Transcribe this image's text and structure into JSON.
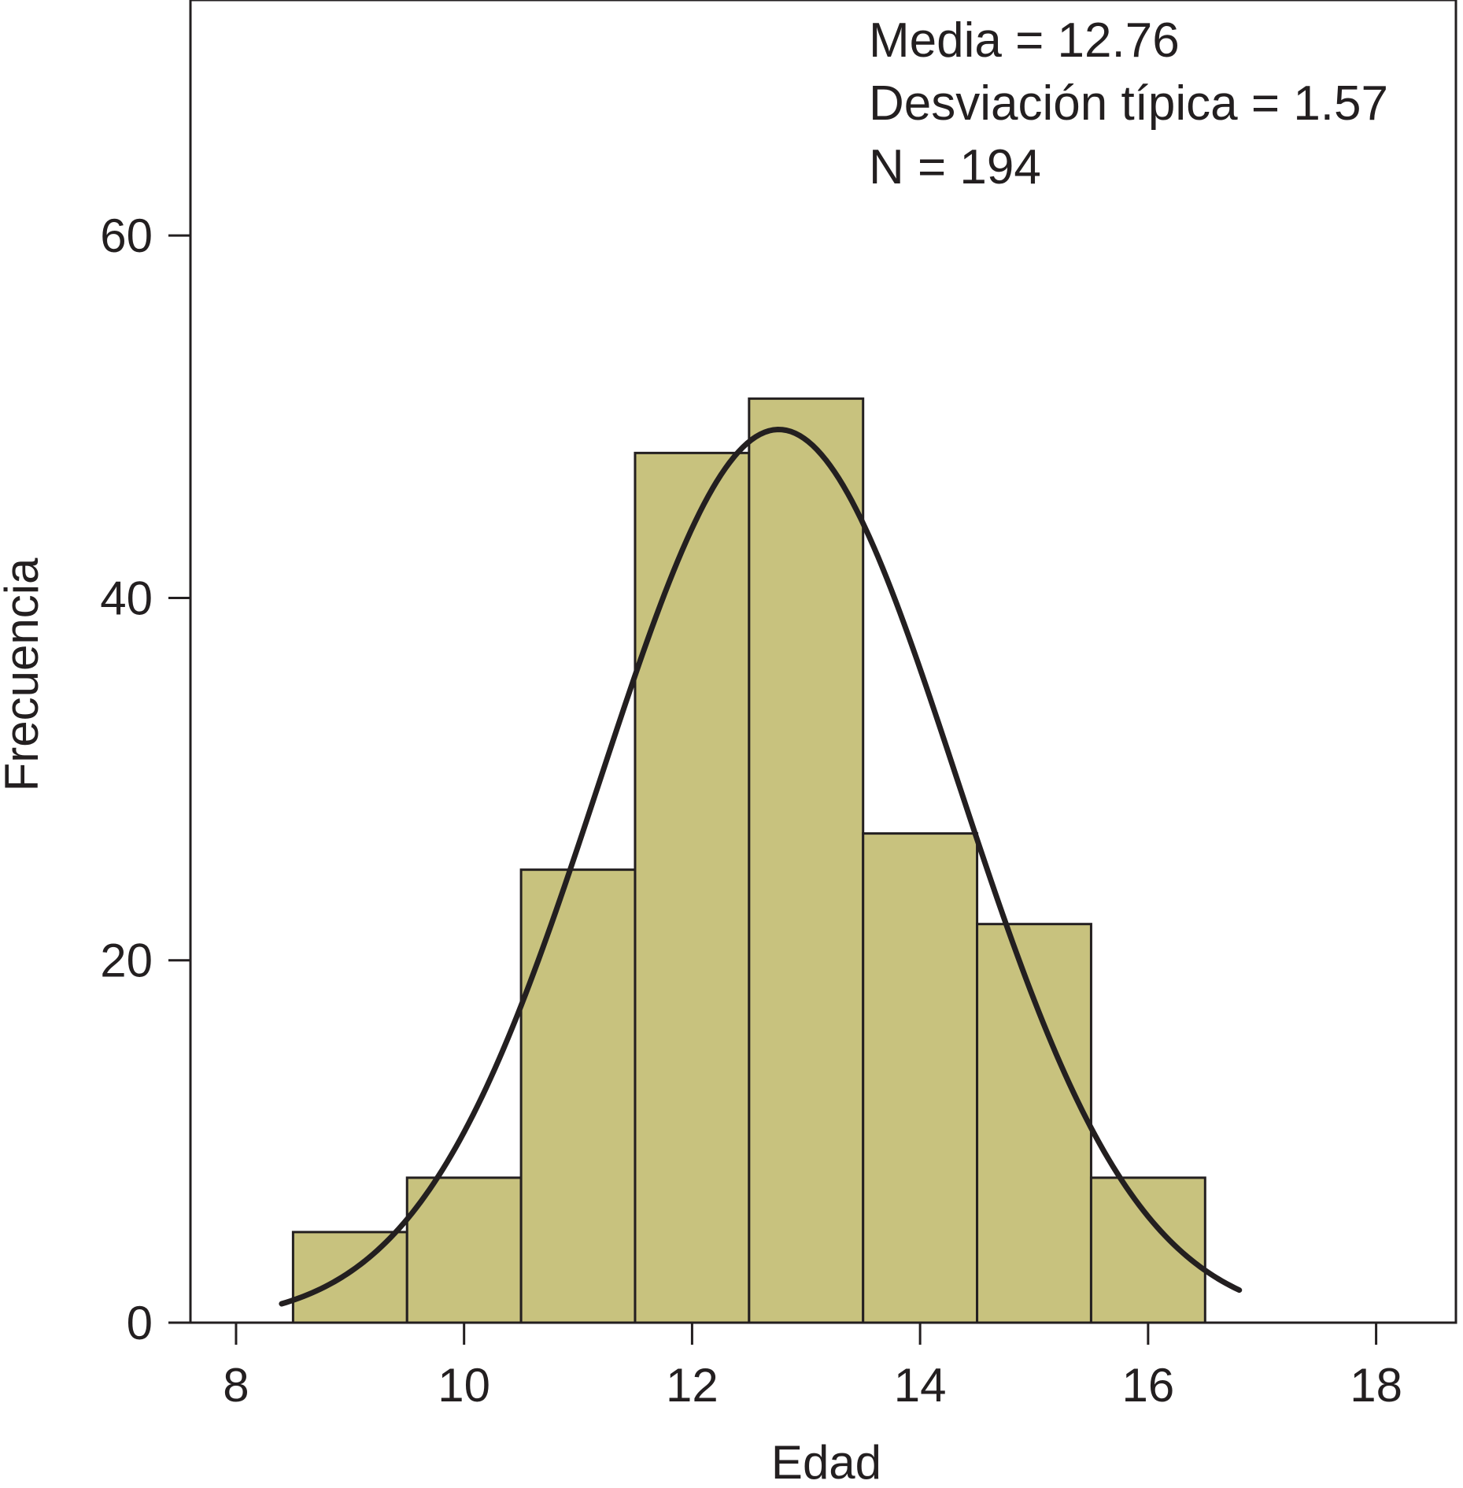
{
  "chart_data": {
    "type": "bar",
    "subtype": "histogram",
    "title": "",
    "xlabel": "Edad",
    "ylabel": "Frecuencia",
    "xlim": [
      7.6,
      18.7
    ],
    "ylim": [
      0,
      73
    ],
    "x_ticks": [
      8,
      10,
      12,
      14,
      16,
      18
    ],
    "y_ticks": [
      0,
      20,
      40,
      60
    ],
    "bins": [
      {
        "x0": 8.5,
        "x1": 9.5,
        "value": 5
      },
      {
        "x0": 9.5,
        "x1": 10.5,
        "value": 8
      },
      {
        "x0": 10.5,
        "x1": 11.5,
        "value": 25
      },
      {
        "x0": 11.5,
        "x1": 12.5,
        "value": 48
      },
      {
        "x0": 12.5,
        "x1": 13.5,
        "value": 51
      },
      {
        "x0": 13.5,
        "x1": 14.5,
        "value": 27
      },
      {
        "x0": 14.5,
        "x1": 15.5,
        "value": 22
      },
      {
        "x0": 15.5,
        "x1": 16.5,
        "value": 8
      }
    ],
    "normal_curve": {
      "mean": 12.76,
      "sd": 1.57,
      "n": 194,
      "bin_width": 1,
      "x_range": [
        8.4,
        16.8
      ]
    },
    "annotations": [
      "Media = 12.76",
      "Desviación típica = 1.57",
      "N = 194"
    ],
    "grid": false,
    "legend": "none"
  },
  "colors": {
    "bar_fill": "#c8c27e",
    "bar_stroke": "#231f20",
    "curve": "#231f20",
    "axis": "#231f20",
    "text": "#231f20"
  }
}
